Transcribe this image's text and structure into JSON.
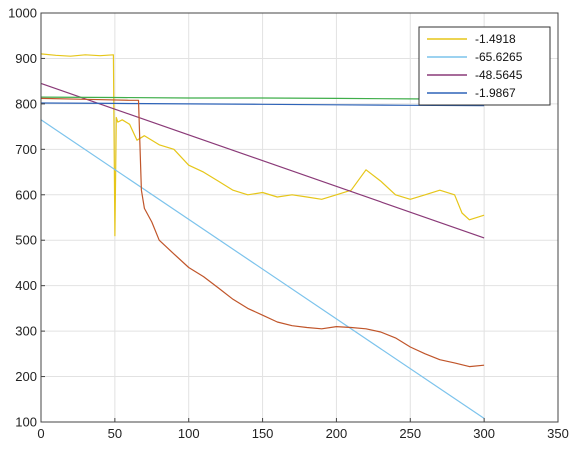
{
  "chart_data": {
    "type": "line",
    "title": "",
    "xlabel": "",
    "ylabel": "",
    "xlim": [
      0,
      350
    ],
    "ylim": [
      100,
      1000
    ],
    "xticks": [
      0,
      50,
      100,
      150,
      200,
      250,
      300,
      350
    ],
    "yticks": [
      100,
      200,
      300,
      400,
      500,
      600,
      700,
      800,
      900,
      1000
    ],
    "grid": true,
    "legend_position": "top-right",
    "legend": [
      "-1.4918",
      "-65.6265",
      "-48.5645",
      "-1.9867"
    ],
    "colors": {
      "yellow": "#e6c619",
      "lightblue": "#7cc3ec",
      "purple": "#8a3a78",
      "blue": "#2e63b8",
      "green": "#3fae4a",
      "orange": "#c0552a",
      "axis": "#444444",
      "grid": "#e2e2e2"
    },
    "series": [
      {
        "color": "#e6c619",
        "x": [
          0,
          10,
          20,
          30,
          40,
          49,
          50,
          51,
          52,
          55,
          60,
          65,
          70,
          80,
          90,
          100,
          110,
          120,
          130,
          140,
          150,
          160,
          170,
          180,
          190,
          200,
          210,
          220,
          230,
          240,
          250,
          260,
          270,
          280,
          285,
          290,
          300
        ],
        "y": [
          910,
          907,
          905,
          908,
          906,
          908,
          510,
          770,
          760,
          765,
          755,
          720,
          730,
          710,
          700,
          665,
          650,
          630,
          610,
          600,
          605,
          595,
          600,
          595,
          590,
          600,
          610,
          655,
          630,
          600,
          590,
          600,
          610,
          600,
          560,
          545,
          555
        ]
      },
      {
        "color": "#7cc3ec",
        "x": [
          0,
          300
        ],
        "y": [
          765,
          108
        ]
      },
      {
        "color": "#8a3a78",
        "x": [
          0,
          300
        ],
        "y": [
          845,
          505
        ]
      },
      {
        "color": "#2e63b8",
        "x": [
          0,
          50,
          100,
          150,
          200,
          250,
          300
        ],
        "y": [
          802,
          801,
          800,
          799,
          798,
          797,
          796
        ]
      },
      {
        "color": "#3fae4a",
        "x": [
          0,
          50,
          100,
          150,
          200,
          250,
          300
        ],
        "y": [
          815,
          814,
          813,
          813,
          812,
          811,
          810
        ]
      },
      {
        "color": "#c0552a",
        "x": [
          0,
          30,
          60,
          66,
          68,
          70,
          75,
          80,
          90,
          100,
          110,
          120,
          130,
          140,
          150,
          160,
          170,
          180,
          190,
          200,
          210,
          220,
          230,
          240,
          250,
          260,
          270,
          280,
          290,
          300
        ],
        "y": [
          812,
          810,
          808,
          808,
          610,
          570,
          540,
          500,
          470,
          440,
          420,
          395,
          370,
          350,
          335,
          320,
          312,
          308,
          305,
          310,
          308,
          305,
          298,
          285,
          265,
          250,
          237,
          230,
          222,
          225
        ]
      }
    ]
  }
}
